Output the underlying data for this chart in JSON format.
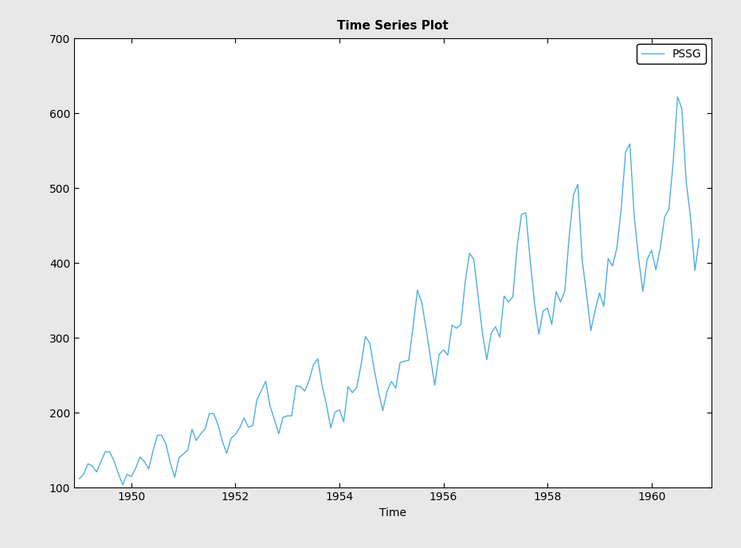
{
  "title": "Time Series Plot",
  "xlabel": "Time",
  "ylabel": "",
  "line_color": "#4DAEDC",
  "line_width": 1.0,
  "legend_label": "PSSG",
  "ylim": [
    100,
    700
  ],
  "yticks": [
    100,
    200,
    300,
    400,
    500,
    600,
    700
  ],
  "xticks": [
    1950.0,
    1952.0,
    1954.0,
    1956.0,
    1958.0,
    1960.0
  ],
  "background_color": "#E8E8E8",
  "plot_bg_color": "#FFFFFF",
  "title_fontsize": 11,
  "label_fontsize": 10,
  "tick_fontsize": 10,
  "values": [
    112,
    118,
    132,
    129,
    121,
    135,
    148,
    148,
    136,
    119,
    104,
    118,
    115,
    126,
    141,
    135,
    125,
    149,
    170,
    170,
    158,
    133,
    114,
    140,
    145,
    150,
    178,
    163,
    172,
    178,
    199,
    199,
    184,
    162,
    146,
    166,
    171,
    180,
    193,
    181,
    183,
    218,
    230,
    242,
    209,
    191,
    172,
    194,
    196,
    196,
    236,
    235,
    229,
    243,
    264,
    272,
    237,
    211,
    180,
    201,
    204,
    188,
    235,
    227,
    234,
    264,
    302,
    293,
    259,
    229,
    203,
    229,
    242,
    233,
    267,
    269,
    270,
    315,
    364,
    347,
    312,
    274,
    237,
    278,
    284,
    277,
    317,
    313,
    318,
    374,
    413,
    405,
    355,
    306,
    271,
    306,
    315,
    301,
    356,
    348,
    355,
    422,
    465,
    467,
    404,
    347,
    305,
    336,
    340,
    318,
    362,
    348,
    363,
    435,
    491,
    505,
    404,
    359,
    310,
    337,
    360,
    342,
    406,
    396,
    420,
    472,
    548,
    559,
    463,
    407,
    362,
    405,
    417,
    391,
    419,
    461,
    472,
    535,
    622,
    606,
    508,
    461,
    390,
    432
  ]
}
